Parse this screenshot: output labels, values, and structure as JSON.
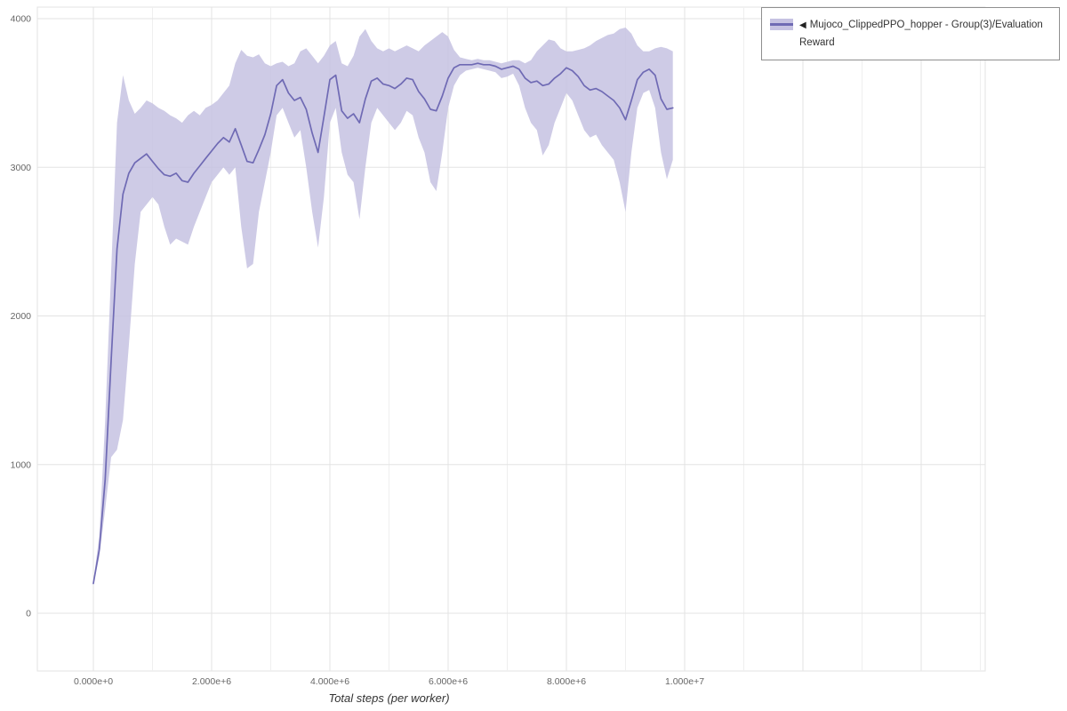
{
  "page": {
    "background": "#ffffff"
  },
  "legend": {
    "marker": "◀",
    "label": "Mujoco_ClippedPPO_hopper - Group(3)/Evaluation Reward"
  },
  "chart_data": {
    "type": "line",
    "title": "",
    "xlabel": "Total steps (per worker)",
    "ylabel": "",
    "legend_position": "top-right",
    "grid": true,
    "xlim": [
      0,
      10000000
    ],
    "ylim": [
      0,
      4000
    ],
    "x_unit_multiplier": 1000000,
    "x_ticks": [
      {
        "label": "0.000e+0",
        "v": 0
      },
      {
        "label": "2.000e+6",
        "v": 2
      },
      {
        "label": "4.000e+6",
        "v": 4
      },
      {
        "label": "6.000e+6",
        "v": 6
      },
      {
        "label": "8.000e+6",
        "v": 8
      },
      {
        "label": "1.000e+7",
        "v": 10
      }
    ],
    "y_ticks": [
      {
        "label": "0",
        "v": 0
      },
      {
        "label": "1000",
        "v": 1000
      },
      {
        "label": "2000",
        "v": 2000
      },
      {
        "label": "3000",
        "v": 3000
      },
      {
        "label": "4000",
        "v": 4000
      }
    ],
    "series": [
      {
        "name": "Mujoco_ClippedPPO_hopper - Group(3)/Evaluation Reward",
        "color": "#6f6ab4",
        "band_color": "#c6c2e2",
        "band_opacity": 0.85,
        "point_format": [
          "x_e6",
          "lower",
          "mean",
          "upper"
        ],
        "points": [
          [
            0.0,
            190,
            200,
            215
          ],
          [
            0.1,
            380,
            430,
            520
          ],
          [
            0.2,
            700,
            900,
            1300
          ],
          [
            0.3,
            1050,
            1700,
            2300
          ],
          [
            0.4,
            1100,
            2450,
            3300
          ],
          [
            0.5,
            1300,
            2820,
            3620
          ],
          [
            0.6,
            1800,
            2960,
            3450
          ],
          [
            0.7,
            2350,
            3030,
            3360
          ],
          [
            0.8,
            2700,
            3060,
            3400
          ],
          [
            0.9,
            2750,
            3090,
            3450
          ],
          [
            1.0,
            2800,
            3040,
            3430
          ],
          [
            1.1,
            2750,
            2990,
            3400
          ],
          [
            1.2,
            2600,
            2950,
            3380
          ],
          [
            1.3,
            2480,
            2940,
            3350
          ],
          [
            1.4,
            2520,
            2960,
            3330
          ],
          [
            1.5,
            2500,
            2910,
            3300
          ],
          [
            1.6,
            2480,
            2900,
            3350
          ],
          [
            1.7,
            2600,
            2960,
            3380
          ],
          [
            1.8,
            2700,
            3010,
            3350
          ],
          [
            1.9,
            2800,
            3060,
            3400
          ],
          [
            2.0,
            2900,
            3110,
            3420
          ],
          [
            2.1,
            2950,
            3160,
            3450
          ],
          [
            2.2,
            3000,
            3200,
            3500
          ],
          [
            2.3,
            2950,
            3170,
            3550
          ],
          [
            2.4,
            3000,
            3260,
            3700
          ],
          [
            2.5,
            2600,
            3150,
            3790
          ],
          [
            2.6,
            2320,
            3040,
            3750
          ],
          [
            2.7,
            2350,
            3030,
            3740
          ],
          [
            2.8,
            2700,
            3120,
            3760
          ],
          [
            2.9,
            2900,
            3220,
            3700
          ],
          [
            3.0,
            3100,
            3360,
            3680
          ],
          [
            3.1,
            3350,
            3550,
            3700
          ],
          [
            3.2,
            3400,
            3590,
            3710
          ],
          [
            3.3,
            3300,
            3500,
            3680
          ],
          [
            3.4,
            3200,
            3450,
            3700
          ],
          [
            3.5,
            3250,
            3470,
            3780
          ],
          [
            3.6,
            3000,
            3390,
            3800
          ],
          [
            3.7,
            2700,
            3230,
            3750
          ],
          [
            3.8,
            2460,
            3100,
            3700
          ],
          [
            3.9,
            2800,
            3340,
            3750
          ],
          [
            4.0,
            3300,
            3590,
            3820
          ],
          [
            4.1,
            3400,
            3620,
            3850
          ],
          [
            4.2,
            3100,
            3380,
            3700
          ],
          [
            4.3,
            2950,
            3330,
            3680
          ],
          [
            4.4,
            2900,
            3360,
            3750
          ],
          [
            4.5,
            2650,
            3300,
            3880
          ],
          [
            4.6,
            3000,
            3460,
            3930
          ],
          [
            4.7,
            3300,
            3580,
            3850
          ],
          [
            4.8,
            3400,
            3600,
            3800
          ],
          [
            4.9,
            3350,
            3560,
            3780
          ],
          [
            5.0,
            3300,
            3550,
            3800
          ],
          [
            5.1,
            3250,
            3530,
            3780
          ],
          [
            5.2,
            3300,
            3560,
            3800
          ],
          [
            5.3,
            3380,
            3600,
            3820
          ],
          [
            5.4,
            3350,
            3590,
            3800
          ],
          [
            5.5,
            3200,
            3510,
            3780
          ],
          [
            5.6,
            3100,
            3460,
            3820
          ],
          [
            5.7,
            2900,
            3390,
            3850
          ],
          [
            5.8,
            2840,
            3380,
            3880
          ],
          [
            5.9,
            3100,
            3480,
            3910
          ],
          [
            6.0,
            3400,
            3600,
            3880
          ],
          [
            6.1,
            3550,
            3670,
            3790
          ],
          [
            6.2,
            3620,
            3690,
            3740
          ],
          [
            6.3,
            3650,
            3690,
            3730
          ],
          [
            6.4,
            3660,
            3690,
            3720
          ],
          [
            6.5,
            3670,
            3700,
            3730
          ],
          [
            6.6,
            3660,
            3690,
            3720
          ],
          [
            6.7,
            3650,
            3690,
            3720
          ],
          [
            6.8,
            3640,
            3680,
            3710
          ],
          [
            6.9,
            3600,
            3660,
            3700
          ],
          [
            7.0,
            3610,
            3670,
            3710
          ],
          [
            7.1,
            3630,
            3680,
            3720
          ],
          [
            7.2,
            3550,
            3660,
            3720
          ],
          [
            7.3,
            3400,
            3600,
            3700
          ],
          [
            7.4,
            3300,
            3570,
            3720
          ],
          [
            7.5,
            3250,
            3580,
            3780
          ],
          [
            7.6,
            3080,
            3550,
            3820
          ],
          [
            7.7,
            3150,
            3560,
            3860
          ],
          [
            7.8,
            3300,
            3600,
            3850
          ],
          [
            7.9,
            3400,
            3630,
            3800
          ],
          [
            8.0,
            3500,
            3670,
            3780
          ],
          [
            8.1,
            3450,
            3650,
            3780
          ],
          [
            8.2,
            3350,
            3610,
            3790
          ],
          [
            8.3,
            3250,
            3550,
            3800
          ],
          [
            8.4,
            3200,
            3520,
            3820
          ],
          [
            8.5,
            3220,
            3530,
            3850
          ],
          [
            8.6,
            3150,
            3510,
            3870
          ],
          [
            8.7,
            3100,
            3480,
            3890
          ],
          [
            8.8,
            3050,
            3450,
            3900
          ],
          [
            8.9,
            2900,
            3400,
            3930
          ],
          [
            9.0,
            2700,
            3320,
            3940
          ],
          [
            9.1,
            3100,
            3450,
            3900
          ],
          [
            9.2,
            3400,
            3590,
            3820
          ],
          [
            9.3,
            3500,
            3640,
            3780
          ],
          [
            9.4,
            3520,
            3660,
            3780
          ],
          [
            9.5,
            3400,
            3620,
            3800
          ],
          [
            9.6,
            3100,
            3460,
            3810
          ],
          [
            9.7,
            2920,
            3390,
            3800
          ],
          [
            9.8,
            3050,
            3400,
            3780
          ]
        ]
      }
    ]
  }
}
